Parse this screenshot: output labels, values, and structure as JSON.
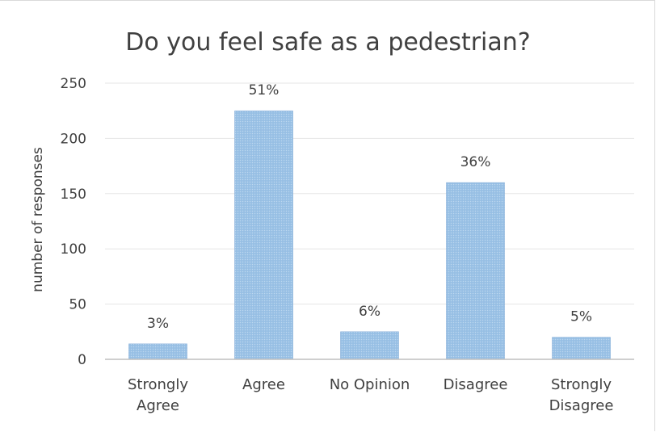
{
  "chart_data": {
    "type": "bar",
    "title": "Do you feel safe as a pedestrian?",
    "ylabel": "number of responses",
    "xlabel": "",
    "categories": [
      [
        "Strongly",
        "Agree"
      ],
      [
        "Agree"
      ],
      [
        "No Opinion"
      ],
      [
        "Disagree"
      ],
      [
        "Strongly",
        "Disagree"
      ]
    ],
    "values": [
      14,
      225,
      25,
      160,
      20
    ],
    "data_labels": [
      "3%",
      "51%",
      "6%",
      "36%",
      "5%"
    ],
    "ylim": [
      0,
      250
    ],
    "yticks": [
      "0",
      "50",
      "100",
      "150",
      "200",
      "250"
    ],
    "grid": true,
    "legend": "none",
    "colors": {
      "bar_fill": "#9dc3e6",
      "bar_stroke": "#7fa9d6",
      "grid": "#e6e6e6",
      "axis": "#bfbfbf",
      "text": "#404040"
    }
  }
}
